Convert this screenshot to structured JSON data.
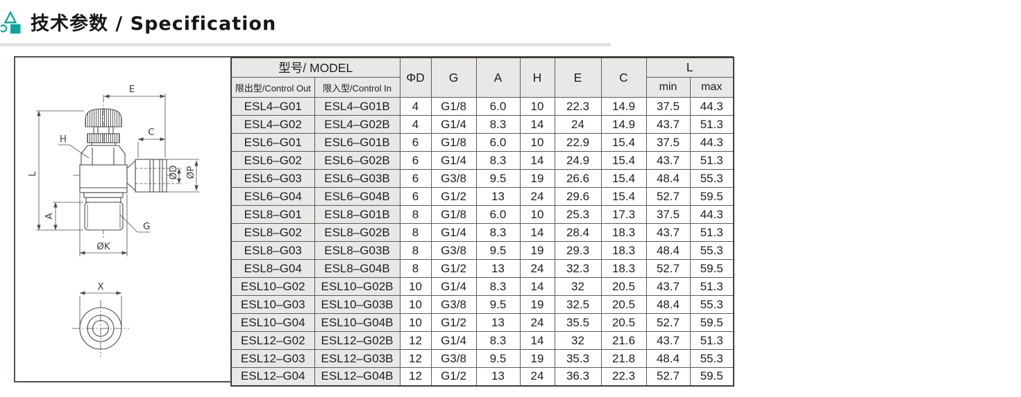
{
  "header": {
    "title": "技术参数 / Specification",
    "icon_color": "#0ea49b"
  },
  "drawing": {
    "labels": {
      "e": "E",
      "c": "C",
      "h": "H",
      "l": "L",
      "a": "A",
      "g": "G",
      "ok": "ØK",
      "od": "ØD",
      "op": "ØP",
      "x": "X"
    }
  },
  "table": {
    "model_header": "型号/ MODEL",
    "sub_headers": [
      "限出型/Control Out",
      "限入型/Control In"
    ],
    "columns": [
      "ΦD",
      "G",
      "A",
      "H",
      "E",
      "C"
    ],
    "l_header": "L",
    "l_sub": [
      "min",
      "max"
    ],
    "rows": [
      {
        "out": "ESL4–G01",
        "in": "ESL4–G01B",
        "d": "4",
        "g": "G1/8",
        "a": "6.0",
        "h": "10",
        "e": "22.3",
        "c": "14.9",
        "min": "37.5",
        "max": "44.3"
      },
      {
        "out": "ESL4–G02",
        "in": "ESL4–G02B",
        "d": "4",
        "g": "G1/4",
        "a": "8.3",
        "h": "14",
        "e": "24",
        "c": "14.9",
        "min": "43.7",
        "max": "51.3"
      },
      {
        "out": "ESL6–G01",
        "in": "ESL6–G01B",
        "d": "6",
        "g": "G1/8",
        "a": "6.0",
        "h": "10",
        "e": "22.9",
        "c": "15.4",
        "min": "37.5",
        "max": "44.3"
      },
      {
        "out": "ESL6–G02",
        "in": "ESL6–G02B",
        "d": "6",
        "g": "G1/4",
        "a": "8.3",
        "h": "14",
        "e": "24.9",
        "c": "15.4",
        "min": "43.7",
        "max": "51.3"
      },
      {
        "out": "ESL6–G03",
        "in": "ESL6–G03B",
        "d": "6",
        "g": "G3/8",
        "a": "9.5",
        "h": "19",
        "e": "26.6",
        "c": "15.4",
        "min": "48.4",
        "max": "55.3"
      },
      {
        "out": "ESL6–G04",
        "in": "ESL6–G04B",
        "d": "6",
        "g": "G1/2",
        "a": "13",
        "h": "24",
        "e": "29.6",
        "c": "15.4",
        "min": "52.7",
        "max": "59.5"
      },
      {
        "out": "ESL8–G01",
        "in": "ESL8–G01B",
        "d": "8",
        "g": "G1/8",
        "a": "6.0",
        "h": "10",
        "e": "25.3",
        "c": "17.3",
        "min": "37.5",
        "max": "44.3"
      },
      {
        "out": "ESL8–G02",
        "in": "ESL8–G02B",
        "d": "8",
        "g": "G1/4",
        "a": "8.3",
        "h": "14",
        "e": "28.4",
        "c": "18.3",
        "min": "43.7",
        "max": "51.3"
      },
      {
        "out": "ESL8–G03",
        "in": "ESL8–G03B",
        "d": "8",
        "g": "G3/8",
        "a": "9.5",
        "h": "19",
        "e": "29.3",
        "c": "18.3",
        "min": "48.4",
        "max": "55.3"
      },
      {
        "out": "ESL8–G04",
        "in": "ESL8–G04B",
        "d": "8",
        "g": "G1/2",
        "a": "13",
        "h": "24",
        "e": "32.3",
        "c": "18.3",
        "min": "52.7",
        "max": "59.5"
      },
      {
        "out": "ESL10–G02",
        "in": "ESL10–G02B",
        "d": "10",
        "g": "G1/4",
        "a": "8.3",
        "h": "14",
        "e": "32",
        "c": "20.5",
        "min": "43.7",
        "max": "51.3"
      },
      {
        "out": "ESL10–G03",
        "in": "ESL10–G03B",
        "d": "10",
        "g": "G3/8",
        "a": "9.5",
        "h": "19",
        "e": "32.5",
        "c": "20.5",
        "min": "48.4",
        "max": "55.3"
      },
      {
        "out": "ESL10–G04",
        "in": "ESL10–G04B",
        "d": "10",
        "g": "G1/2",
        "a": "13",
        "h": "24",
        "e": "35.5",
        "c": "20.5",
        "min": "52.7",
        "max": "59.5"
      },
      {
        "out": "ESL12–G02",
        "in": "ESL12–G02B",
        "d": "12",
        "g": "G1/4",
        "a": "8.3",
        "h": "14",
        "e": "32",
        "c": "21.6",
        "min": "43.7",
        "max": "51.3"
      },
      {
        "out": "ESL12–G03",
        "in": "ESL12–G03B",
        "d": "12",
        "g": "G3/8",
        "a": "9.5",
        "h": "19",
        "e": "35.3",
        "c": "21.8",
        "min": "48.4",
        "max": "55.3"
      },
      {
        "out": "ESL12–G04",
        "in": "ESL12–G04B",
        "d": "12",
        "g": "G1/2",
        "a": "13",
        "h": "24",
        "e": "36.3",
        "c": "22.3",
        "min": "52.7",
        "max": "59.5"
      }
    ]
  }
}
